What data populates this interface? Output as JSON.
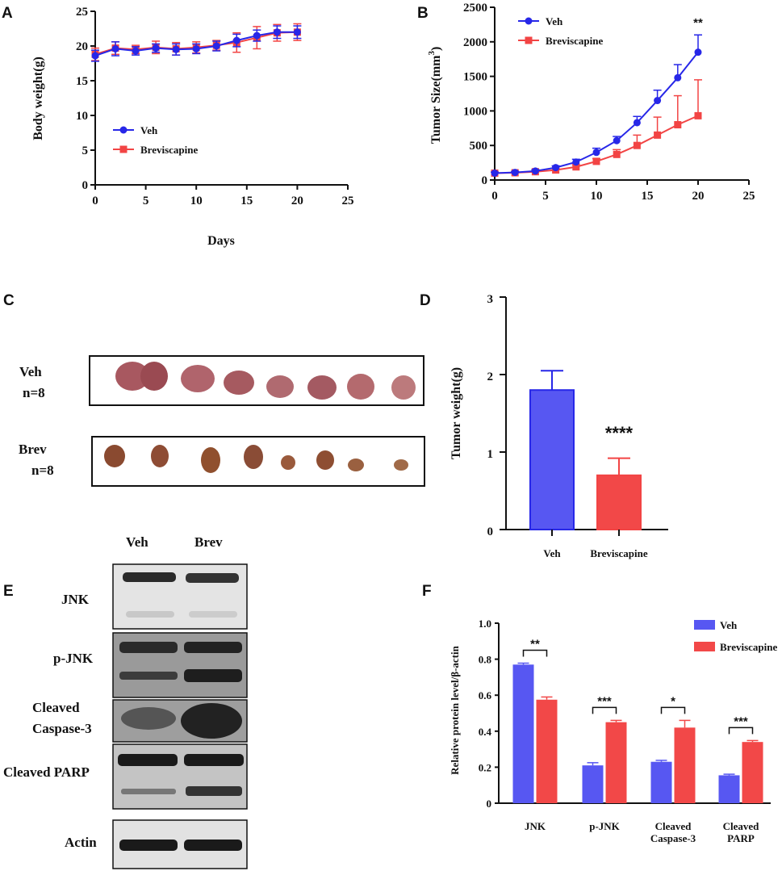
{
  "colors": {
    "veh": "#2727e8",
    "brev": "#f24444",
    "veh_bar": "#5757f2",
    "brev_bar": "#f24848",
    "axis": "#111111"
  },
  "panels": {
    "A": {
      "letter": "A"
    },
    "B": {
      "letter": "B"
    },
    "C": {
      "letter": "C",
      "veh_label": "Veh",
      "veh_n": "n=8",
      "brev_label": "Brev",
      "brev_n": "n=8"
    },
    "D": {
      "letter": "D"
    },
    "E": {
      "letter": "E",
      "lane_labels": [
        "Veh",
        "Brev"
      ],
      "rows": [
        "JNK",
        "p-JNK",
        "Cleaved",
        "Caspase-3",
        "Cleaved PARP",
        "Actin"
      ]
    },
    "F": {
      "letter": "F"
    }
  },
  "chart_data": [
    {
      "id": "A",
      "type": "line",
      "xlabel": "Days",
      "ylabel": "Body weight(g)",
      "xlim": [
        0,
        25
      ],
      "ylim": [
        0,
        25
      ],
      "xticks": [
        0,
        5,
        10,
        15,
        20,
        25
      ],
      "yticks": [
        0,
        5,
        10,
        15,
        20,
        25
      ],
      "legend": [
        "Veh",
        "Breviscapine"
      ],
      "series": [
        {
          "name": "Veh",
          "color": "#2727e8",
          "marker": "circle",
          "x": [
            0,
            2,
            4,
            6,
            8,
            10,
            12,
            14,
            16,
            18,
            20
          ],
          "values": [
            18.6,
            19.6,
            19.3,
            19.7,
            19.5,
            19.6,
            20.0,
            20.8,
            21.5,
            22.0,
            22.0
          ],
          "errors": [
            0.8,
            1.0,
            0.6,
            0.6,
            0.8,
            0.7,
            0.7,
            0.9,
            0.8,
            0.9,
            0.9
          ]
        },
        {
          "name": "Breviscapine",
          "color": "#f24444",
          "marker": "square",
          "x": [
            0,
            2,
            4,
            6,
            8,
            10,
            12,
            14,
            16,
            18,
            20
          ],
          "values": [
            18.8,
            19.7,
            19.5,
            19.8,
            19.6,
            19.8,
            20.1,
            20.5,
            21.2,
            21.9,
            22.0
          ],
          "errors": [
            0.9,
            0.9,
            0.6,
            0.9,
            0.9,
            0.8,
            0.7,
            1.4,
            1.6,
            1.2,
            1.2
          ]
        }
      ]
    },
    {
      "id": "B",
      "type": "line",
      "xlabel": "",
      "ylabel": "Tumor Size(mm",
      "ylabel_sup": "3",
      "ylabel_end": ")",
      "xlim": [
        0,
        25
      ],
      "ylim": [
        0,
        2500
      ],
      "xticks": [
        0,
        5,
        10,
        15,
        20,
        25
      ],
      "yticks": [
        0,
        500,
        1000,
        1500,
        2000,
        2500
      ],
      "legend": [
        "Veh",
        "Breviscapine"
      ],
      "annotation": "**",
      "series": [
        {
          "name": "Veh",
          "color": "#2727e8",
          "marker": "circle",
          "x": [
            0,
            2,
            4,
            6,
            8,
            10,
            12,
            14,
            16,
            18,
            20
          ],
          "values": [
            100,
            110,
            130,
            180,
            260,
            400,
            570,
            830,
            1150,
            1480,
            1850
          ],
          "errors": [
            15,
            15,
            20,
            25,
            40,
            60,
            60,
            90,
            150,
            190,
            250
          ]
        },
        {
          "name": "Breviscapine",
          "color": "#f24444",
          "marker": "square",
          "x": [
            0,
            2,
            4,
            6,
            8,
            10,
            12,
            14,
            16,
            18,
            20
          ],
          "values": [
            100,
            105,
            120,
            145,
            190,
            270,
            370,
            500,
            650,
            800,
            930
          ],
          "errors": [
            15,
            15,
            20,
            20,
            30,
            40,
            70,
            150,
            260,
            420,
            520
          ]
        }
      ]
    },
    {
      "id": "D",
      "type": "bar",
      "ylabel": "Tumor weight(g)",
      "ylim": [
        0,
        3
      ],
      "yticks": [
        0,
        1,
        2,
        3
      ],
      "categories": [
        "Veh",
        "Breviscapine"
      ],
      "values": [
        1.8,
        0.7
      ],
      "errors": [
        0.25,
        0.22
      ],
      "annotation": "****"
    },
    {
      "id": "F",
      "type": "bar",
      "ylabel": "Relative protein level/β-actin",
      "ylim": [
        0,
        1.0
      ],
      "yticks": [
        "0",
        "0.2",
        "0.4",
        "0.6",
        "0.8",
        "1.0"
      ],
      "categories": [
        "JNK",
        "p-JNK",
        "Cleaved Caspase-3",
        "Cleaved PARP"
      ],
      "category_lines": [
        [
          "JNK"
        ],
        [
          "p-JNK"
        ],
        [
          "Cleaved",
          "Caspase-3"
        ],
        [
          "Cleaved",
          "PARP"
        ]
      ],
      "legend": [
        "Veh",
        "Breviscapine"
      ],
      "series": [
        {
          "name": "Veh",
          "color": "#5757f2",
          "values": [
            0.77,
            0.21,
            0.23,
            0.155
          ],
          "errors": [
            0.008,
            0.015,
            0.008,
            0.006
          ]
        },
        {
          "name": "Breviscapine",
          "color": "#f24848",
          "values": [
            0.575,
            0.45,
            0.42,
            0.34
          ],
          "errors": [
            0.015,
            0.01,
            0.04,
            0.008
          ]
        }
      ],
      "significance": [
        "**",
        "***",
        "*",
        "***"
      ]
    }
  ]
}
